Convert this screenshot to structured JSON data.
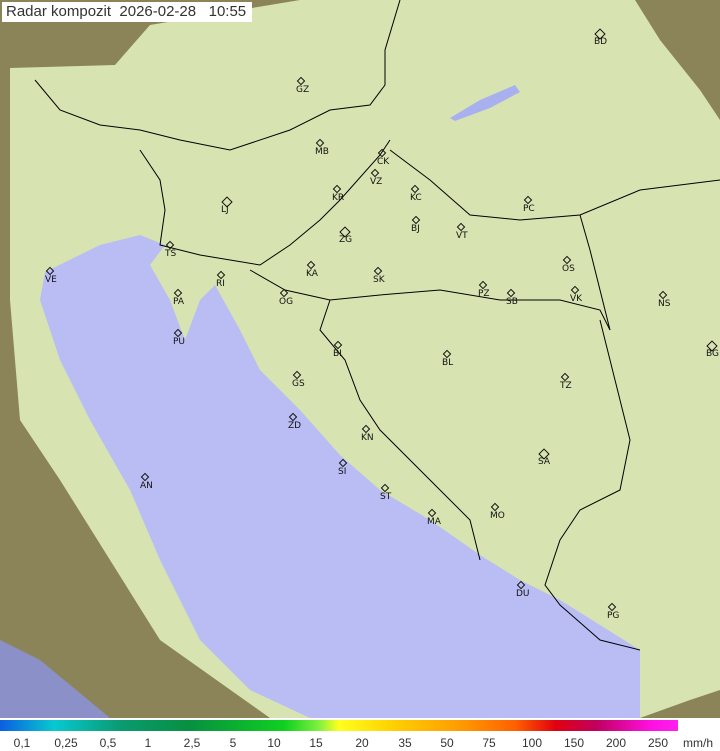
{
  "title": "Radar kompozit  2026-02-28   10:55",
  "colors": {
    "sea": "#b8bcf2",
    "terrain_dark": "#7a7550",
    "coverage": "#d9e8b4",
    "border": "#000000"
  },
  "cities": [
    {
      "code": "BD",
      "big": true
    },
    {
      "code": "GZ"
    },
    {
      "code": "MB"
    },
    {
      "code": "CK"
    },
    {
      "code": "VZ"
    },
    {
      "code": "KR"
    },
    {
      "code": "KC"
    },
    {
      "code": "PC"
    },
    {
      "code": "LJ",
      "big": true
    },
    {
      "code": "ZG",
      "big": true
    },
    {
      "code": "BJ"
    },
    {
      "code": "VT"
    },
    {
      "code": "TS"
    },
    {
      "code": "VE"
    },
    {
      "code": "KA"
    },
    {
      "code": "SK"
    },
    {
      "code": "OS"
    },
    {
      "code": "RI"
    },
    {
      "code": "PA"
    },
    {
      "code": "OG"
    },
    {
      "code": "PZ"
    },
    {
      "code": "SB"
    },
    {
      "code": "VK"
    },
    {
      "code": "NS"
    },
    {
      "code": "PU"
    },
    {
      "code": "BG",
      "big": true
    },
    {
      "code": "BI"
    },
    {
      "code": "BL"
    },
    {
      "code": "GS"
    },
    {
      "code": "TZ"
    },
    {
      "code": "ZD"
    },
    {
      "code": "KN"
    },
    {
      "code": "SA",
      "big": true
    },
    {
      "code": "SI"
    },
    {
      "code": "AN"
    },
    {
      "code": "ST"
    },
    {
      "code": "MO"
    },
    {
      "code": "MA"
    },
    {
      "code": "DU"
    },
    {
      "code": "PG"
    }
  ],
  "legend": {
    "unit": "mm/h",
    "labels": [
      "0,1",
      "0,25",
      "0,5",
      "1",
      "2,5",
      "5",
      "10",
      "15",
      "20",
      "35",
      "50",
      "75",
      "100",
      "150",
      "200",
      "250"
    ]
  }
}
